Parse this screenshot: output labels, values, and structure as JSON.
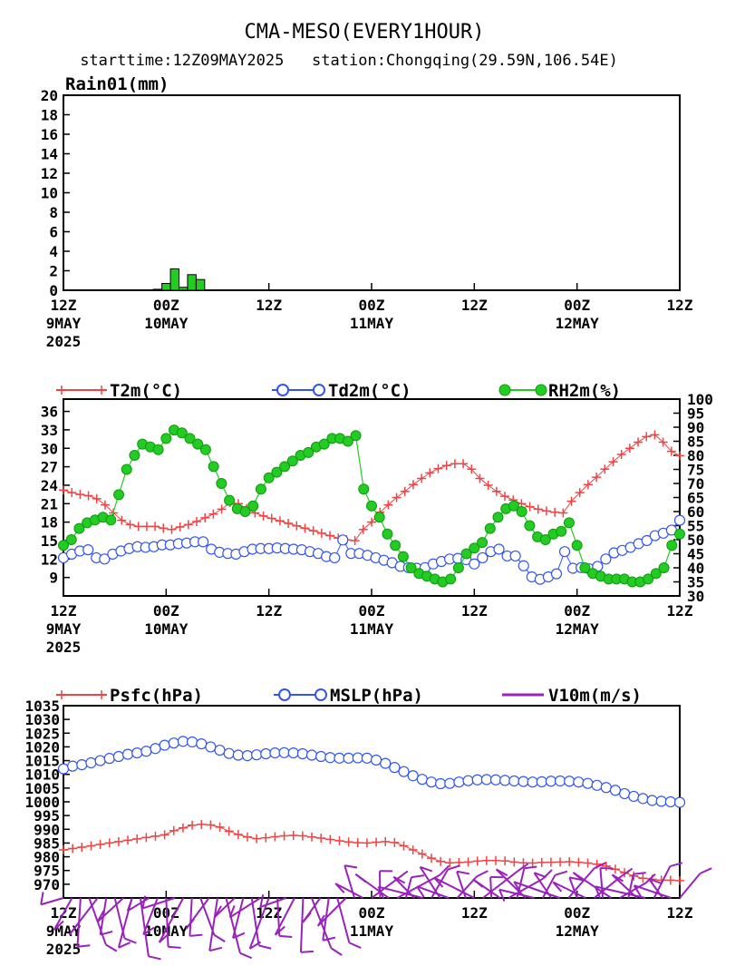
{
  "header": {
    "title": "CMA-MESO(EVERY1HOUR)",
    "subtitle": "starttime:12Z09MAY2025   station:Chongqing(29.59N,106.54E)"
  },
  "time_axis": {
    "ticks": [
      {
        "l1": "12Z",
        "l2": "9MAY",
        "l3": "2025"
      },
      {
        "l1": "00Z",
        "l2": "10MAY",
        "l3": ""
      },
      {
        "l1": "12Z",
        "l2": "",
        "l3": ""
      },
      {
        "l1": "00Z",
        "l2": "11MAY",
        "l3": ""
      },
      {
        "l1": "12Z",
        "l2": "",
        "l3": ""
      },
      {
        "l1": "00Z",
        "l2": "12MAY",
        "l3": ""
      },
      {
        "l1": "12Z",
        "l2": "",
        "l3": ""
      }
    ]
  },
  "colors": {
    "rain_bar": "#22cc22",
    "t2m": "#ee4444",
    "td2m": "#3355ee",
    "rh2m": "#22cc22",
    "psfc": "#ee4444",
    "mslp": "#3355ee",
    "wind": "#9922bb"
  },
  "chart_data": [
    {
      "type": "bar",
      "panel_label": "Rain01(mm)",
      "x_hours_from_start": [
        11,
        12,
        13,
        14,
        15,
        16
      ],
      "values": [
        0.1,
        0.7,
        2.2,
        0.3,
        1.6,
        1.1
      ],
      "xlim": [
        0,
        72
      ],
      "ylim": [
        0,
        20
      ],
      "yticks": [
        "0",
        "2",
        "4",
        "6",
        "8",
        "10",
        "12",
        "14",
        "16",
        "18",
        "20"
      ]
    },
    {
      "type": "line",
      "xlim": [
        0,
        72
      ],
      "left_axis": {
        "ylim": [
          6,
          38
        ],
        "yticks": [
          "9",
          "12",
          "15",
          "18",
          "21",
          "24",
          "27",
          "30",
          "33",
          "36"
        ]
      },
      "right_axis": {
        "ylim": [
          30,
          100
        ],
        "yticks": [
          "30",
          "35",
          "40",
          "45",
          "50",
          "55",
          "60",
          "65",
          "70",
          "75",
          "80",
          "85",
          "90",
          "95",
          "100"
        ]
      },
      "series": [
        {
          "name": "T2m(°C)",
          "marker": "plus",
          "axis": "left",
          "values": [
            23.2,
            22.8,
            22.5,
            22.3,
            21.8,
            20.8,
            19.5,
            18.3,
            17.6,
            17.3,
            17.3,
            17.3,
            17.0,
            16.8,
            17.2,
            17.6,
            18.1,
            18.7,
            19.3,
            20.1,
            21.2,
            21.0,
            20.2,
            19.5,
            19.0,
            18.6,
            18.2,
            17.8,
            17.4,
            17.0,
            16.6,
            16.2,
            15.8,
            15.4,
            15.1,
            15.0,
            16.8,
            18.0,
            19.6,
            20.8,
            22.0,
            23.0,
            24.1,
            25.1,
            26.0,
            26.7,
            27.2,
            27.5,
            27.5,
            26.6,
            25.1,
            24.0,
            23.0,
            22.2,
            21.6,
            21.0,
            20.5,
            20.1,
            19.8,
            19.6,
            19.5,
            21.4,
            22.8,
            24.1,
            25.3,
            26.6,
            27.8,
            29.0,
            30.0,
            31.0,
            31.9,
            32.2,
            31.0,
            29.5,
            28.8
          ]
        },
        {
          "name": "Td2m(°C)",
          "marker": "circle",
          "axis": "left",
          "values": [
            12.2,
            12.8,
            13.3,
            13.5,
            12.2,
            12.0,
            12.8,
            13.3,
            13.7,
            14.0,
            13.9,
            14.0,
            14.3,
            14.3,
            14.5,
            14.6,
            14.8,
            14.8,
            13.6,
            13.1,
            12.9,
            12.8,
            13.2,
            13.6,
            13.7,
            13.7,
            13.8,
            13.7,
            13.6,
            13.5,
            13.2,
            12.9,
            12.4,
            12.2,
            15.1,
            12.9,
            12.9,
            12.6,
            12.2,
            11.8,
            11.4,
            10.8,
            10.6,
            10.5,
            10.6,
            11.2,
            11.6,
            12.0,
            12.1,
            11.9,
            11.2,
            12.2,
            13.2,
            13.6,
            12.5,
            12.5,
            10.9,
            9.1,
            8.7,
            9.1,
            9.6,
            13.2,
            10.5,
            10.6,
            10.4,
            10.8,
            12.0,
            13.0,
            13.4,
            13.9,
            14.5,
            15.0,
            15.8,
            16.2,
            16.7,
            18.3
          ]
        },
        {
          "name": "RH2m(%)",
          "marker": "dot",
          "axis": "right",
          "values": [
            48,
            50,
            54,
            56,
            57,
            58,
            57,
            66,
            75,
            80,
            84,
            83,
            82,
            86,
            89,
            88,
            86,
            84,
            82,
            76,
            70,
            64,
            61,
            60,
            62,
            68,
            72,
            74,
            76,
            78,
            80,
            81,
            83,
            84,
            86,
            86,
            85,
            87,
            68,
            62,
            58,
            52,
            48,
            44,
            40,
            38,
            37,
            36,
            35,
            36,
            40,
            45,
            47,
            49,
            54,
            58,
            61,
            62,
            60,
            55,
            51,
            50,
            52,
            53,
            56,
            48,
            40,
            38,
            37,
            36,
            36,
            36,
            35,
            35,
            36,
            38,
            40,
            48,
            52
          ]
        },
        {
          "name": "",
          "marker": "none",
          "axis": "right",
          "values": []
        }
      ]
    },
    {
      "type": "line",
      "xlim": [
        0,
        72
      ],
      "ylim": [
        965,
        1035
      ],
      "yticks": [
        "970",
        "975",
        "980",
        "985",
        "990",
        "995",
        "1000",
        "1005",
        "1010",
        "1015",
        "1020",
        "1025",
        "1030",
        "1035"
      ],
      "series": [
        {
          "name": "Psfc(hPa)",
          "marker": "plus",
          "values": [
            982.5,
            983.0,
            983.5,
            984.0,
            984.5,
            985.0,
            985.5,
            986.0,
            986.5,
            987.0,
            987.5,
            988.0,
            989.5,
            990.5,
            991.5,
            991.8,
            991.6,
            990.8,
            989.3,
            988.1,
            987.2,
            986.6,
            986.9,
            987.3,
            987.6,
            987.8,
            987.6,
            987.2,
            986.8,
            986.3,
            985.8,
            985.4,
            985.1,
            985.0,
            985.3,
            985.5,
            985.2,
            984.0,
            982.5,
            981.0,
            979.5,
            978.3,
            977.8,
            977.9,
            978.1,
            978.4,
            978.6,
            978.6,
            978.5,
            978.1,
            977.8,
            977.7,
            977.9,
            978.0,
            978.1,
            978.2,
            978.0,
            977.7,
            977.3,
            976.6,
            975.5,
            974.2,
            973.0,
            972.2,
            971.8,
            971.5,
            971.5,
            971.3
          ]
        },
        {
          "name": "MSLP(hPa)",
          "marker": "circle",
          "values": [
            1012.0,
            1013.0,
            1013.5,
            1014.2,
            1015.0,
            1015.8,
            1016.5,
            1017.3,
            1017.8,
            1018.4,
            1019.4,
            1020.6,
            1021.4,
            1022.0,
            1021.8,
            1021.1,
            1020.0,
            1018.8,
            1017.6,
            1017.0,
            1016.8,
            1017.1,
            1017.5,
            1017.8,
            1017.9,
            1017.8,
            1017.5,
            1017.0,
            1016.5,
            1016.1,
            1015.9,
            1015.9,
            1016.0,
            1015.9,
            1015.2,
            1014.0,
            1012.5,
            1011.0,
            1009.5,
            1008.2,
            1007.2,
            1006.6,
            1006.7,
            1007.2,
            1007.7,
            1008.0,
            1008.1,
            1008.0,
            1007.8,
            1007.6,
            1007.4,
            1007.2,
            1007.3,
            1007.5,
            1007.6,
            1007.5,
            1007.2,
            1006.7,
            1006.0,
            1005.2,
            1004.2,
            1003.0,
            1002.0,
            1001.2,
            1000.5,
            1000.2,
            1000.0,
            999.8
          ]
        },
        {
          "name": "V10m(m/s)",
          "marker": "barb",
          "values": []
        }
      ]
    }
  ]
}
